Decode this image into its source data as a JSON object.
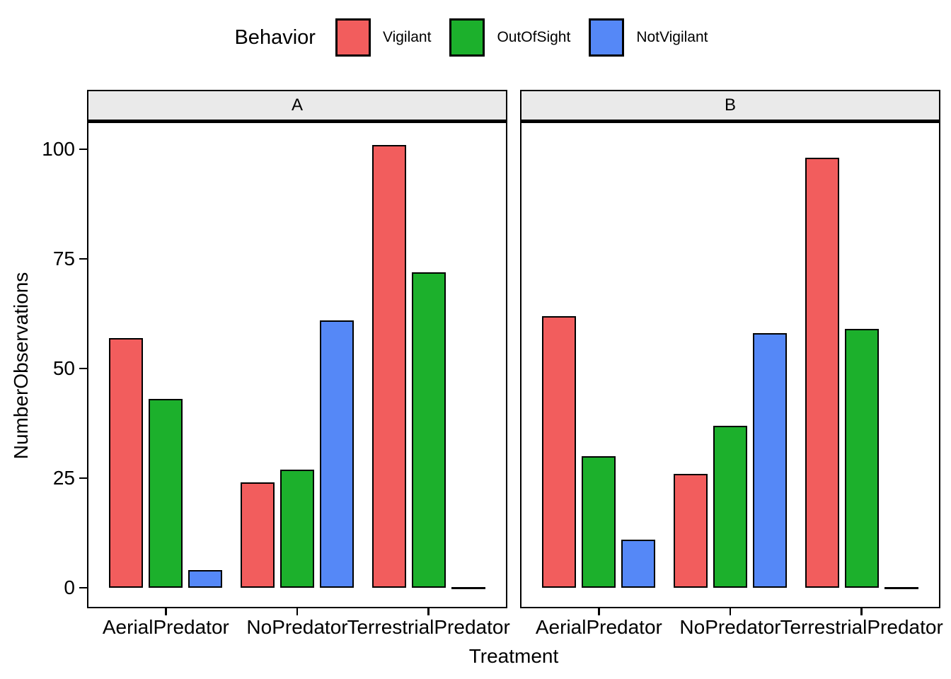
{
  "figure": {
    "background": "#FFFFFF"
  },
  "chart_data": {
    "type": "bar",
    "grouping": "dodged",
    "faceted": true,
    "title": "",
    "xlabel": "Treatment",
    "ylabel": "NumberObservations",
    "legend_title": "Behavior",
    "legend_position": "top",
    "grid": false,
    "categories": [
      "AerialPredator",
      "NoPredator",
      "TerrestrialPredator"
    ],
    "series": [
      {
        "name": "Vigilant",
        "color": "#F25D5D"
      },
      {
        "name": "OutOfSight",
        "color": "#1CB02C"
      },
      {
        "name": "NotVigilant",
        "color": "#5588F7"
      }
    ],
    "facets": [
      {
        "label": "A",
        "series": [
          {
            "name": "Vigilant",
            "values": [
              57,
              24,
              101
            ]
          },
          {
            "name": "OutOfSight",
            "values": [
              43,
              27,
              72
            ]
          },
          {
            "name": "NotVigilant",
            "values": [
              4,
              61,
              0
            ]
          }
        ]
      },
      {
        "label": "B",
        "series": [
          {
            "name": "Vigilant",
            "values": [
              62,
              26,
              98
            ]
          },
          {
            "name": "OutOfSight",
            "values": [
              30,
              37,
              59
            ]
          },
          {
            "name": "NotVigilant",
            "values": [
              11,
              58,
              0
            ]
          }
        ]
      }
    ],
    "yticks": [
      0,
      25,
      50,
      75,
      100
    ],
    "ylim": [
      0,
      101
    ],
    "bar_outline_color": "#000000",
    "strip_fill": "#EAEAEA",
    "panel_border_color": "#000000"
  }
}
